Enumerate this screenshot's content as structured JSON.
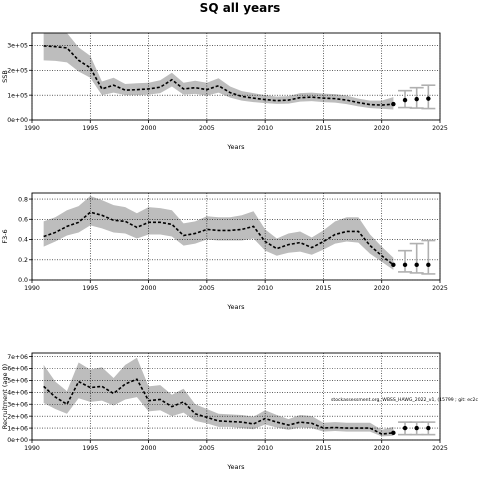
{
  "figure": {
    "title": "SQ all years",
    "watermark": "stockassessment.org, WBSS_HAWG_2022_v1, (15799 ; git: ec2c"
  },
  "chart_data": [
    {
      "type": "line",
      "name": "panel-ssb",
      "ylabel": "SSB",
      "xlabel": "Years",
      "xlim": [
        1990,
        2025
      ],
      "ylim": [
        0,
        350000
      ],
      "xticks": [
        1990,
        1995,
        2000,
        2005,
        2010,
        2015,
        2020,
        2025
      ],
      "yticks": [
        0,
        100000,
        200000,
        300000
      ],
      "ytick_labels": [
        "0e+00",
        "1e+05",
        "2e+05",
        "3e+05"
      ],
      "grid": true,
      "x": [
        1991,
        1992,
        1993,
        1994,
        1995,
        1996,
        1997,
        1998,
        1999,
        2000,
        2001,
        2002,
        2003,
        2004,
        2005,
        2006,
        2007,
        2008,
        2009,
        2010,
        2011,
        2012,
        2013,
        2014,
        2015,
        2016,
        2017,
        2018,
        2019,
        2020,
        2021
      ],
      "estimate": [
        298000,
        295000,
        290000,
        240000,
        210000,
        125000,
        140000,
        120000,
        122000,
        125000,
        132000,
        162000,
        125000,
        130000,
        122000,
        138000,
        110000,
        95000,
        88000,
        82000,
        78000,
        80000,
        90000,
        92000,
        88000,
        86000,
        80000,
        70000,
        62000,
        60000,
        64000
      ],
      "lower": [
        240000,
        238000,
        232000,
        195000,
        170000,
        100000,
        110000,
        100000,
        100000,
        102000,
        108000,
        135000,
        102000,
        105000,
        98000,
        110000,
        90000,
        78000,
        72000,
        68000,
        65000,
        66000,
        74000,
        76000,
        72000,
        70000,
        64000,
        55000,
        48000,
        45000,
        42000
      ],
      "upper": [
        365000,
        360000,
        352000,
        292000,
        258000,
        155000,
        170000,
        145000,
        148000,
        150000,
        160000,
        190000,
        150000,
        158000,
        150000,
        168000,
        135000,
        116000,
        108000,
        100000,
        94000,
        96000,
        108000,
        110000,
        106000,
        104000,
        98000,
        86000,
        78000,
        78000,
        92000
      ],
      "forecast": {
        "x": [
          2021,
          2022,
          2023,
          2024
        ],
        "estimate": [
          64000,
          80000,
          84000,
          86000
        ],
        "lower": [
          42000,
          50000,
          48000,
          46000
        ],
        "upper": [
          92000,
          118000,
          130000,
          140000
        ]
      }
    },
    {
      "type": "line",
      "name": "panel-f",
      "ylabel": "F3-6",
      "xlabel": "Years",
      "xlim": [
        1990,
        2025
      ],
      "ylim": [
        0,
        0.86
      ],
      "xticks": [
        1990,
        1995,
        2000,
        2005,
        2010,
        2015,
        2020,
        2025
      ],
      "yticks": [
        0.0,
        0.2,
        0.4,
        0.6,
        0.8
      ],
      "ytick_labels": [
        "0.0",
        "0.2",
        "0.4",
        "0.6",
        "0.8"
      ],
      "grid": true,
      "x": [
        1991,
        1992,
        1993,
        1994,
        1995,
        1996,
        1997,
        1998,
        1999,
        2000,
        2001,
        2002,
        2003,
        2004,
        2005,
        2006,
        2007,
        2008,
        2009,
        2010,
        2011,
        2012,
        2013,
        2014,
        2015,
        2016,
        2017,
        2018,
        2019,
        2020,
        2021
      ],
      "estimate": [
        0.43,
        0.47,
        0.53,
        0.57,
        0.67,
        0.64,
        0.59,
        0.58,
        0.52,
        0.57,
        0.57,
        0.55,
        0.44,
        0.46,
        0.5,
        0.49,
        0.49,
        0.5,
        0.53,
        0.38,
        0.31,
        0.35,
        0.37,
        0.32,
        0.38,
        0.45,
        0.48,
        0.48,
        0.34,
        0.24,
        0.15
      ],
      "lower": [
        0.33,
        0.38,
        0.44,
        0.47,
        0.54,
        0.51,
        0.47,
        0.46,
        0.41,
        0.45,
        0.45,
        0.43,
        0.34,
        0.36,
        0.4,
        0.39,
        0.39,
        0.39,
        0.41,
        0.29,
        0.24,
        0.27,
        0.28,
        0.25,
        0.3,
        0.36,
        0.38,
        0.37,
        0.26,
        0.18,
        0.1
      ],
      "upper": [
        0.58,
        0.62,
        0.69,
        0.73,
        0.83,
        0.79,
        0.74,
        0.72,
        0.66,
        0.72,
        0.71,
        0.69,
        0.56,
        0.58,
        0.63,
        0.62,
        0.62,
        0.64,
        0.68,
        0.5,
        0.41,
        0.46,
        0.48,
        0.42,
        0.49,
        0.58,
        0.62,
        0.62,
        0.45,
        0.33,
        0.22
      ],
      "forecast": {
        "x": [
          2021,
          2022,
          2023,
          2024
        ],
        "estimate": [
          0.15,
          0.15,
          0.15,
          0.15
        ],
        "lower": [
          0.09,
          0.08,
          0.07,
          0.06
        ],
        "upper": [
          0.22,
          0.29,
          0.36,
          0.39
        ]
      }
    },
    {
      "type": "line",
      "name": "panel-recruitment",
      "ylabel": "Recruitment (age 0)",
      "xlabel": "Years",
      "xlim": [
        1990,
        2025
      ],
      "ylim": [
        0,
        7300000
      ],
      "xticks": [
        1990,
        1995,
        2000,
        2005,
        2010,
        2015,
        2020,
        2025
      ],
      "yticks": [
        0,
        1000000,
        2000000,
        3000000,
        4000000,
        5000000,
        6000000,
        7000000
      ],
      "ytick_labels": [
        "0e+00",
        "1e+06",
        "2e+06",
        "3e+06",
        "4e+06",
        "5e+06",
        "6e+06",
        "7e+06"
      ],
      "grid": true,
      "x": [
        1991,
        1992,
        1993,
        1994,
        1995,
        1996,
        1997,
        1998,
        1999,
        2000,
        2001,
        2002,
        2003,
        2004,
        2005,
        2006,
        2007,
        2008,
        2009,
        2010,
        2011,
        2012,
        2013,
        2014,
        2015,
        2016,
        2017,
        2018,
        2019,
        2020,
        2021
      ],
      "estimate": [
        4500000,
        3600000,
        3000000,
        4900000,
        4400000,
        4500000,
        3900000,
        4700000,
        5100000,
        3300000,
        3400000,
        2800000,
        3200000,
        2200000,
        1900000,
        1600000,
        1550000,
        1500000,
        1350000,
        1800000,
        1500000,
        1250000,
        1500000,
        1400000,
        1000000,
        1050000,
        1000000,
        1000000,
        1000000,
        500000,
        600000
      ],
      "lower": [
        3100000,
        2600000,
        2200000,
        3500000,
        3200000,
        3300000,
        2900000,
        3400000,
        3600000,
        2400000,
        2500000,
        2000000,
        2300000,
        1600000,
        1400000,
        1100000,
        1100000,
        1000000,
        900000,
        1300000,
        1050000,
        850000,
        1050000,
        1000000,
        700000,
        750000,
        700000,
        700000,
        700000,
        300000,
        350000
      ],
      "upper": [
        6300000,
        4900000,
        4100000,
        6500000,
        5900000,
        6100000,
        5200000,
        6300000,
        6900000,
        4500000,
        4600000,
        3800000,
        4300000,
        3000000,
        2600000,
        2200000,
        2150000,
        2100000,
        1950000,
        2500000,
        2100000,
        1750000,
        2100000,
        2000000,
        1450000,
        1500000,
        1450000,
        1450000,
        1450000,
        850000,
        1100000
      ],
      "forecast": {
        "x": [
          2021,
          2022,
          2023,
          2024
        ],
        "estimate": [
          600000,
          1000000,
          1000000,
          1000000
        ],
        "lower": [
          350000,
          450000,
          450000,
          450000
        ],
        "upper": [
          1100000,
          1500000,
          1500000,
          1500000
        ]
      }
    }
  ]
}
